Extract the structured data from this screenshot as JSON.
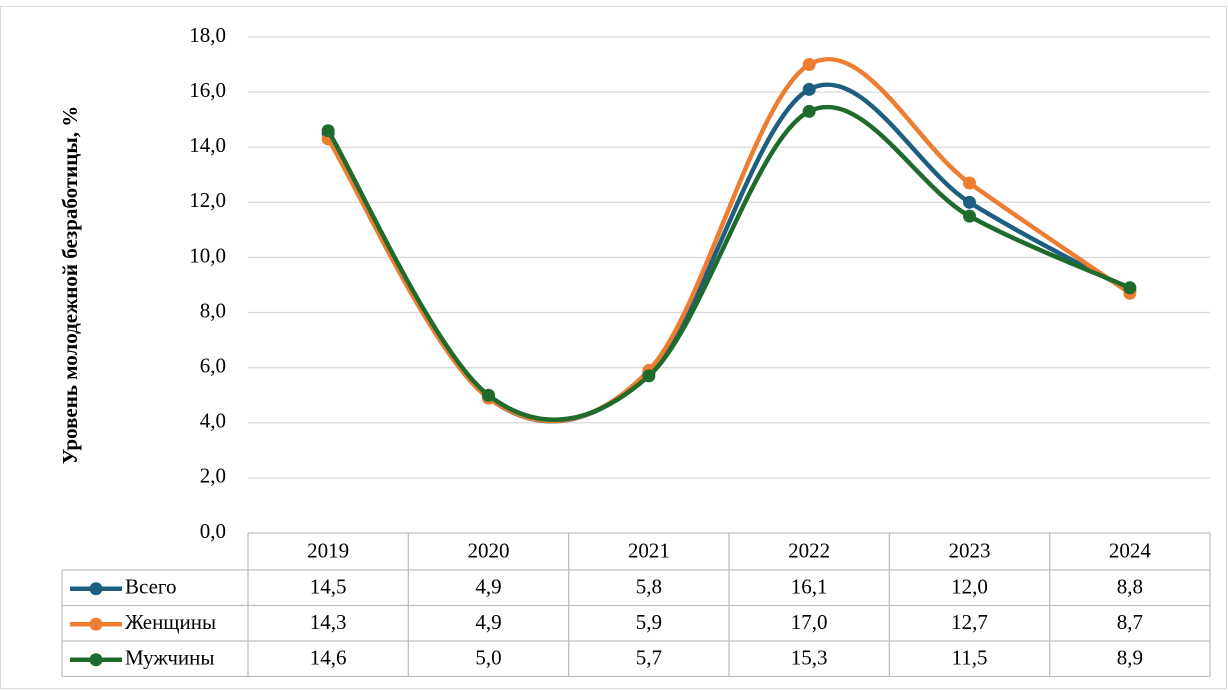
{
  "chart_data": {
    "type": "line",
    "y_label": "Уровень молодежной безработицы, %",
    "categories": [
      "2019",
      "2020",
      "2021",
      "2022",
      "2023",
      "2024"
    ],
    "series": [
      {
        "name": "Всего",
        "color": "#1c5f80",
        "values": [
          14.5,
          4.9,
          5.8,
          16.1,
          12.0,
          8.8
        ],
        "value_labels": [
          "14,5",
          "4,9",
          "5,8",
          "16,1",
          "12,0",
          "8,8"
        ]
      },
      {
        "name": "Женщины",
        "color": "#ed7d31",
        "values": [
          14.3,
          4.9,
          5.9,
          17.0,
          12.7,
          8.7
        ],
        "value_labels": [
          "14,3",
          "4,9",
          "5,9",
          "17,0",
          "12,7",
          "8,7"
        ]
      },
      {
        "name": "Мужчины",
        "color": "#1e6b2c",
        "values": [
          14.6,
          5.0,
          5.7,
          15.3,
          11.5,
          8.9
        ],
        "value_labels": [
          "14,6",
          "5,0",
          "5,7",
          "15,3",
          "11,5",
          "8,9"
        ]
      }
    ],
    "ylim": [
      0,
      18
    ],
    "yticks": [
      {
        "value": 0,
        "label": "0,0"
      },
      {
        "value": 2,
        "label": "2,0"
      },
      {
        "value": 4,
        "label": "4,0"
      },
      {
        "value": 6,
        "label": "6,0"
      },
      {
        "value": 8,
        "label": "8,0"
      },
      {
        "value": 10,
        "label": "10,0"
      },
      {
        "value": 12,
        "label": "12,0"
      },
      {
        "value": 14,
        "label": "14,0"
      },
      {
        "value": 16,
        "label": "16,0"
      },
      {
        "value": 18,
        "label": "18,0"
      }
    ],
    "grid": true,
    "smooth": true
  }
}
